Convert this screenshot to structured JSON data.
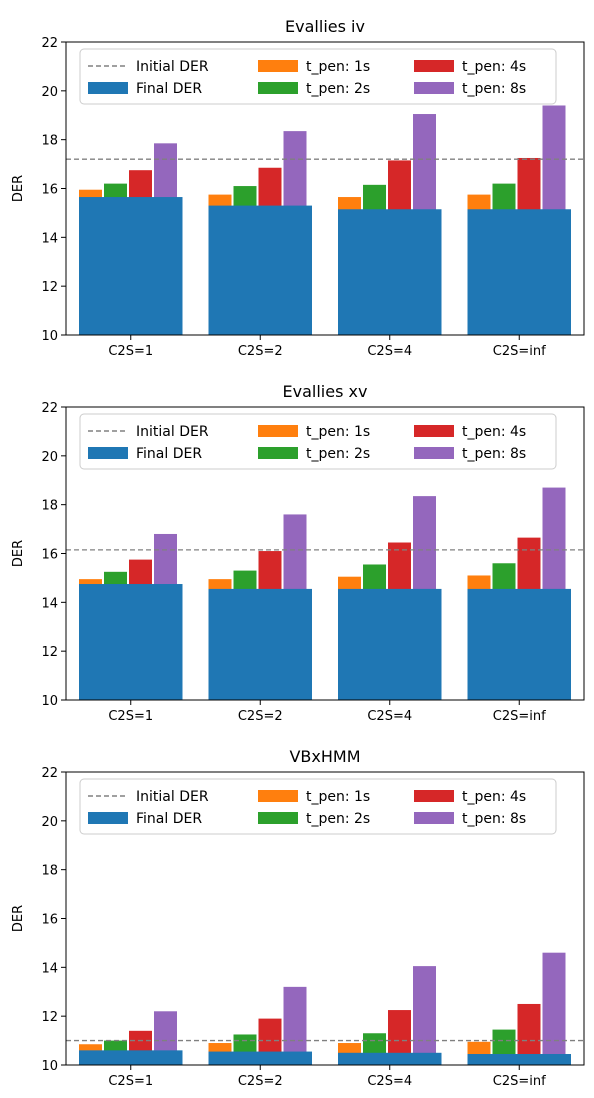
{
  "colors": {
    "final": "#1f77b4",
    "t1": "#ff7f0e",
    "t2": "#2ca02c",
    "t4": "#d62728",
    "t8": "#9467bd",
    "initial": "#808080"
  },
  "chart_data": [
    {
      "type": "bar",
      "title": "Evallies iv",
      "ylabel": "DER",
      "ylim": [
        10,
        22
      ],
      "yticks": [
        "10",
        "12",
        "14",
        "16",
        "18",
        "20",
        "22"
      ],
      "categories": [
        "C2S=1",
        "C2S=2",
        "C2S=4",
        "C2S=inf"
      ],
      "initial_der": 17.2,
      "series": [
        {
          "name": "Final DER",
          "values": [
            15.65,
            15.3,
            15.15,
            15.15
          ]
        },
        {
          "name": "t_pen: 1s",
          "values": [
            15.95,
            15.75,
            15.65,
            15.75
          ]
        },
        {
          "name": "t_pen: 2s",
          "values": [
            16.2,
            16.1,
            16.15,
            16.2
          ]
        },
        {
          "name": "t_pen: 4s",
          "values": [
            16.75,
            16.85,
            17.15,
            17.25
          ]
        },
        {
          "name": "t_pen: 8s",
          "values": [
            17.85,
            18.35,
            19.05,
            19.4
          ]
        }
      ],
      "legend": [
        "Initial DER",
        "Final DER",
        "t_pen: 1s",
        "t_pen: 2s",
        "t_pen: 4s",
        "t_pen: 8s"
      ]
    },
    {
      "type": "bar",
      "title": "Evallies xv",
      "ylabel": "DER",
      "ylim": [
        10,
        22
      ],
      "yticks": [
        "10",
        "12",
        "14",
        "16",
        "18",
        "20",
        "22"
      ],
      "categories": [
        "C2S=1",
        "C2S=2",
        "C2S=4",
        "C2S=inf"
      ],
      "initial_der": 16.15,
      "series": [
        {
          "name": "Final DER",
          "values": [
            14.75,
            14.55,
            14.55,
            14.55
          ]
        },
        {
          "name": "t_pen: 1s",
          "values": [
            14.95,
            14.95,
            15.05,
            15.1
          ]
        },
        {
          "name": "t_pen: 2s",
          "values": [
            15.25,
            15.3,
            15.55,
            15.6
          ]
        },
        {
          "name": "t_pen: 4s",
          "values": [
            15.75,
            16.1,
            16.45,
            16.65
          ]
        },
        {
          "name": "t_pen: 8s",
          "values": [
            16.8,
            17.6,
            18.35,
            18.7
          ]
        }
      ],
      "legend": [
        "Initial DER",
        "Final DER",
        "t_pen: 1s",
        "t_pen: 2s",
        "t_pen: 4s",
        "t_pen: 8s"
      ]
    },
    {
      "type": "bar",
      "title": "VBxHMM",
      "ylabel": "DER",
      "ylim": [
        10,
        22
      ],
      "yticks": [
        "10",
        "12",
        "14",
        "16",
        "18",
        "20",
        "22"
      ],
      "categories": [
        "C2S=1",
        "C2S=2",
        "C2S=4",
        "C2S=inf"
      ],
      "initial_der": 11.0,
      "series": [
        {
          "name": "Final DER",
          "values": [
            10.6,
            10.55,
            10.5,
            10.45
          ]
        },
        {
          "name": "t_pen: 1s",
          "values": [
            10.85,
            10.9,
            10.9,
            10.95
          ]
        },
        {
          "name": "t_pen: 2s",
          "values": [
            11.0,
            11.25,
            11.3,
            11.45
          ]
        },
        {
          "name": "t_pen: 4s",
          "values": [
            11.4,
            11.9,
            12.25,
            12.5
          ]
        },
        {
          "name": "t_pen: 8s",
          "values": [
            12.2,
            13.2,
            14.05,
            14.6
          ]
        }
      ],
      "legend": [
        "Initial DER",
        "Final DER",
        "t_pen: 1s",
        "t_pen: 2s",
        "t_pen: 4s",
        "t_pen: 8s"
      ]
    }
  ]
}
